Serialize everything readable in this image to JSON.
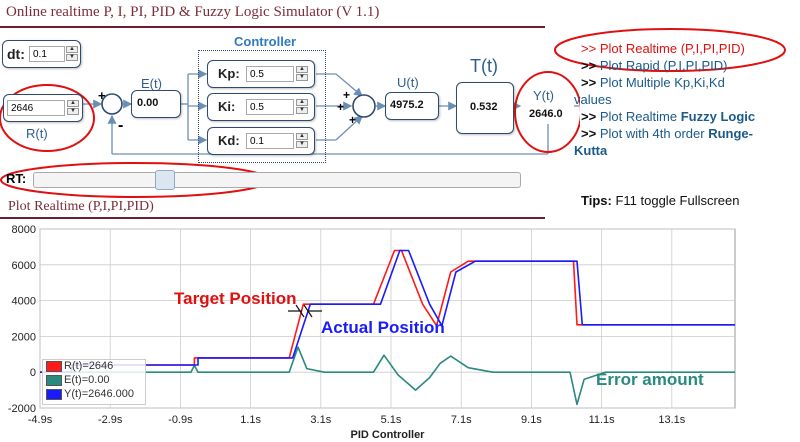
{
  "page": {
    "title": "Online realtime P, I, PI, PID & Fuzzy Logic Simulator (V 1.1)",
    "plot_section_title": "Plot Realtime (P,I,PI,PID)"
  },
  "controls": {
    "dt_label": "dt:",
    "dt_value": "0.1",
    "rt_label": "RT:",
    "rt_slider_fraction": 0.26
  },
  "diagram": {
    "controller_label": "Controller",
    "setpoint_value": "2646",
    "r_label": "R(t)",
    "e_label": "E(t)",
    "e_value": "0.00",
    "kp_label": "Kp:",
    "kp_value": "0.5",
    "ki_label": "Ki:",
    "ki_value": "0.5",
    "kd_label": "Kd:",
    "kd_value": "0.1",
    "u_label": "U(t)",
    "u_value": "4975.2",
    "t_label": "T(t)",
    "t_value": "0.532",
    "y_label": "Y(t)",
    "y_value": "2646.0",
    "plus": "+",
    "minus": "-"
  },
  "menu": {
    "arrow": ">>",
    "items": [
      {
        "text": "Plot Realtime (P,I,PI,PID)"
      },
      {
        "text": "Plot Rapid (P,I,PI,PID)"
      },
      {
        "text": "Plot Multiple Kp,Ki,Kd"
      },
      {
        "text": "values"
      },
      {
        "text": "Plot Realtime ",
        "bold": "Fuzzy Logic"
      },
      {
        "text": "Plot with 4th order ",
        "bold": "Runge-"
      },
      {
        "text": "Kutta"
      }
    ]
  },
  "tips": {
    "label": "Tips:",
    "text": "F11 toggle Fullscreen"
  },
  "annotations": {
    "target": "Target Position",
    "actual": "Actual Position",
    "error": "Error amount"
  },
  "chart_data": {
    "type": "line",
    "xlabel": "PID Controller",
    "xlim": [
      -4.9,
      14.9
    ],
    "ylim": [
      -2000,
      8000
    ],
    "x_ticks": [
      -4.9,
      -2.9,
      -0.9,
      1.1,
      3.1,
      5.1,
      7.1,
      9.1,
      11.1,
      13.1
    ],
    "x_tick_labels": [
      "-4.9s",
      "-2.9s",
      "-0.9s",
      "1.1s",
      "3.1s",
      "5.1s",
      "7.1s",
      "9.1s",
      "11.1s",
      "13.1s"
    ],
    "y_ticks": [
      -2000,
      0,
      2000,
      4000,
      6000,
      8000
    ],
    "y_tick_labels": [
      "-2000",
      "0",
      "2000",
      "4000",
      "6000",
      "8000"
    ],
    "grid": true,
    "legend_position": "bottom-left",
    "series": [
      {
        "name": "R(t)=2646",
        "color": "#ff1a1a",
        "points": [
          [
            -4.9,
            0
          ],
          [
            -4.0,
            0
          ],
          [
            -4.0,
            400
          ],
          [
            -0.5,
            400
          ],
          [
            -0.5,
            800
          ],
          [
            2.2,
            800
          ],
          [
            2.6,
            3800
          ],
          [
            4.6,
            3800
          ],
          [
            5.2,
            6800
          ],
          [
            5.4,
            6800
          ],
          [
            6.0,
            3800
          ],
          [
            6.4,
            2600
          ],
          [
            6.8,
            5600
          ],
          [
            7.3,
            6200
          ],
          [
            10.3,
            6200
          ],
          [
            10.4,
            2646
          ],
          [
            14.9,
            2646
          ]
        ]
      },
      {
        "name": "E(t)=0.00",
        "color": "#2a8a80",
        "points": [
          [
            -4.9,
            0
          ],
          [
            -0.6,
            0
          ],
          [
            -0.5,
            380
          ],
          [
            -0.4,
            0
          ],
          [
            2.2,
            0
          ],
          [
            2.45,
            1400
          ],
          [
            2.7,
            200
          ],
          [
            3.2,
            0
          ],
          [
            4.6,
            0
          ],
          [
            4.9,
            950
          ],
          [
            5.3,
            -150
          ],
          [
            5.8,
            -1000
          ],
          [
            6.2,
            -300
          ],
          [
            6.5,
            500
          ],
          [
            6.8,
            900
          ],
          [
            7.3,
            250
          ],
          [
            8.0,
            0
          ],
          [
            10.2,
            0
          ],
          [
            10.4,
            -1800
          ],
          [
            10.6,
            -400
          ],
          [
            11.2,
            0
          ],
          [
            14.9,
            0
          ]
        ]
      },
      {
        "name": "Y(t)=2646.000",
        "color": "#1a1aff",
        "points": [
          [
            -4.9,
            0
          ],
          [
            -4.0,
            0
          ],
          [
            -4.0,
            400
          ],
          [
            -0.4,
            400
          ],
          [
            -0.4,
            800
          ],
          [
            2.3,
            800
          ],
          [
            2.8,
            3800
          ],
          [
            4.8,
            3800
          ],
          [
            5.35,
            6800
          ],
          [
            5.6,
            6800
          ],
          [
            6.2,
            3800
          ],
          [
            6.55,
            2600
          ],
          [
            6.95,
            5600
          ],
          [
            7.5,
            6200
          ],
          [
            10.4,
            6200
          ],
          [
            10.55,
            2646
          ],
          [
            14.9,
            2646
          ]
        ]
      }
    ]
  }
}
